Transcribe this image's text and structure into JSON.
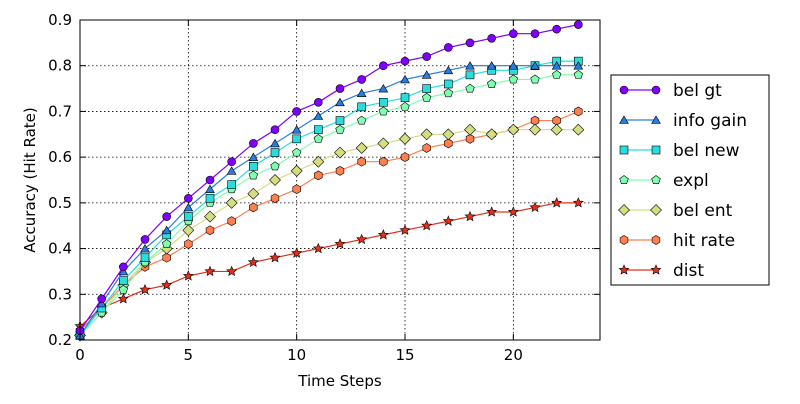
{
  "chart_data": {
    "type": "line",
    "title": "",
    "xlabel": "Time Steps",
    "ylabel": "Accuracy (Hit Rate)",
    "xlim": [
      0,
      24
    ],
    "ylim": [
      0.2,
      0.9
    ],
    "xticks": [
      0,
      5,
      10,
      15,
      20
    ],
    "yticks": [
      0.2,
      0.3,
      0.4,
      0.5,
      0.6,
      0.7,
      0.8,
      0.9
    ],
    "grid": true,
    "legend_position": "right",
    "x": [
      0,
      1,
      2,
      3,
      4,
      5,
      6,
      7,
      8,
      9,
      10,
      11,
      12,
      13,
      14,
      15,
      16,
      17,
      18,
      19,
      20,
      21,
      22,
      23
    ],
    "series": [
      {
        "name": "bel gt",
        "color": "#7f00ff",
        "marker": "circle",
        "values": [
          0.22,
          0.29,
          0.36,
          0.42,
          0.47,
          0.51,
          0.55,
          0.59,
          0.63,
          0.66,
          0.7,
          0.72,
          0.75,
          0.77,
          0.8,
          0.81,
          0.82,
          0.84,
          0.85,
          0.86,
          0.87,
          0.87,
          0.88,
          0.89
        ]
      },
      {
        "name": "info gain",
        "color": "#2a7de0",
        "marker": "triangle",
        "values": [
          0.21,
          0.28,
          0.35,
          0.4,
          0.44,
          0.49,
          0.53,
          0.57,
          0.6,
          0.63,
          0.66,
          0.69,
          0.72,
          0.74,
          0.75,
          0.77,
          0.78,
          0.79,
          0.8,
          0.8,
          0.8,
          0.8,
          0.8,
          0.8
        ]
      },
      {
        "name": "bel new",
        "color": "#2adddd",
        "marker": "square",
        "values": [
          0.21,
          0.27,
          0.33,
          0.38,
          0.43,
          0.47,
          0.51,
          0.54,
          0.58,
          0.61,
          0.64,
          0.66,
          0.68,
          0.71,
          0.72,
          0.73,
          0.75,
          0.76,
          0.78,
          0.79,
          0.79,
          0.8,
          0.81,
          0.81
        ]
      },
      {
        "name": "expl",
        "color": "#7ffeb0",
        "marker": "pentagon",
        "values": [
          0.21,
          0.26,
          0.31,
          0.37,
          0.41,
          0.46,
          0.5,
          0.53,
          0.56,
          0.58,
          0.61,
          0.64,
          0.66,
          0.68,
          0.7,
          0.71,
          0.73,
          0.74,
          0.75,
          0.76,
          0.77,
          0.77,
          0.78,
          0.78
        ]
      },
      {
        "name": "bel ent",
        "color": "#d4dd80",
        "marker": "diamond",
        "values": [
          0.21,
          0.26,
          0.32,
          0.37,
          0.4,
          0.44,
          0.47,
          0.5,
          0.52,
          0.55,
          0.57,
          0.59,
          0.61,
          0.62,
          0.63,
          0.64,
          0.65,
          0.65,
          0.66,
          0.65,
          0.66,
          0.66,
          0.66,
          0.66
        ]
      },
      {
        "name": "hit rate",
        "color": "#ff7f4e",
        "marker": "hexagon",
        "values": [
          0.22,
          0.27,
          0.32,
          0.36,
          0.38,
          0.41,
          0.44,
          0.46,
          0.49,
          0.51,
          0.53,
          0.56,
          0.57,
          0.59,
          0.59,
          0.6,
          0.62,
          0.63,
          0.64,
          0.65,
          0.66,
          0.68,
          0.68,
          0.7
        ]
      },
      {
        "name": "dist",
        "color": "#e3301a",
        "marker": "star",
        "values": [
          0.23,
          0.27,
          0.29,
          0.31,
          0.32,
          0.34,
          0.35,
          0.35,
          0.37,
          0.38,
          0.39,
          0.4,
          0.41,
          0.42,
          0.43,
          0.44,
          0.45,
          0.46,
          0.47,
          0.48,
          0.48,
          0.49,
          0.5,
          0.5
        ]
      }
    ]
  }
}
